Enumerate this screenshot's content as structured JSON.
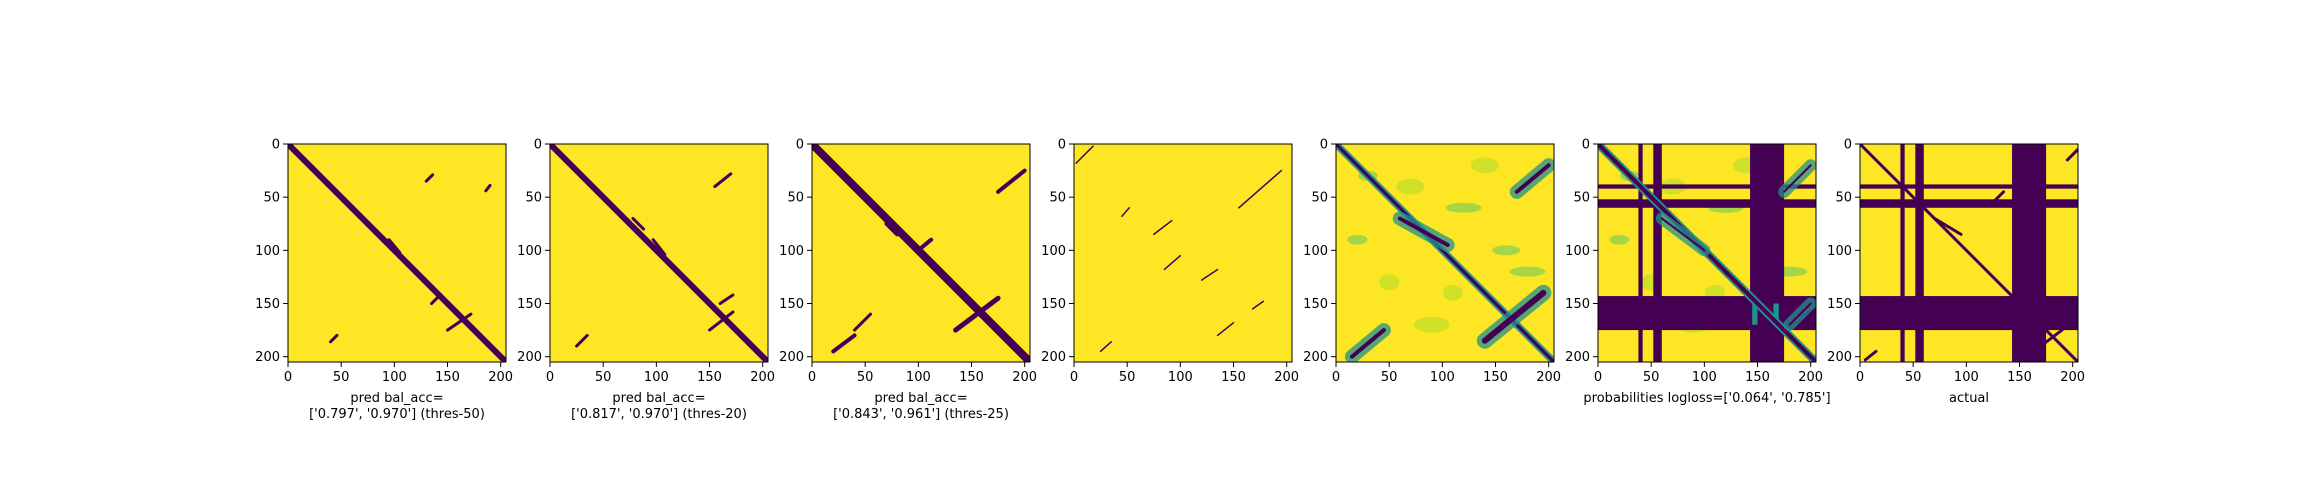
{
  "colors": {
    "background": "#fde725",
    "foreground": "#440154",
    "mid": "#21918c",
    "light": "#5ec962",
    "lighter": "#addc30"
  },
  "chart_data": [
    {
      "type": "heatmap",
      "xlim": [
        0,
        205
      ],
      "ylim": [
        205,
        0
      ],
      "xticks": [
        "0",
        "50",
        "100",
        "150",
        "200"
      ],
      "yticks": [
        "0",
        "50",
        "100",
        "150",
        "200"
      ],
      "xlabel_lines": [
        "pred bal_acc=",
        "['0.797', '0.970'] (thres-50)"
      ]
    },
    {
      "type": "heatmap",
      "xlim": [
        0,
        205
      ],
      "ylim": [
        205,
        0
      ],
      "xticks": [
        "0",
        "50",
        "100",
        "150",
        "200"
      ],
      "yticks": [
        "0",
        "50",
        "100",
        "150",
        "200"
      ],
      "xlabel_lines": [
        "pred bal_acc=",
        "['0.817', '0.970'] (thres-20)"
      ]
    },
    {
      "type": "heatmap",
      "xlim": [
        0,
        205
      ],
      "ylim": [
        205,
        0
      ],
      "xticks": [
        "0",
        "50",
        "100",
        "150",
        "200"
      ],
      "yticks": [
        "0",
        "50",
        "100",
        "150",
        "200"
      ],
      "xlabel_lines": [
        "pred bal_acc=",
        "['0.843', '0.961'] (thres-25)"
      ]
    },
    {
      "type": "heatmap",
      "xlim": [
        0,
        205
      ],
      "ylim": [
        205,
        0
      ],
      "xticks": [
        "0",
        "50",
        "100",
        "150",
        "200"
      ],
      "yticks": [
        "0",
        "50",
        "100",
        "150",
        "200"
      ],
      "xlabel_lines": []
    },
    {
      "type": "heatmap",
      "xlim": [
        0,
        205
      ],
      "ylim": [
        205,
        0
      ],
      "xticks": [
        "0",
        "50",
        "100",
        "150",
        "200"
      ],
      "yticks": [
        "0",
        "50",
        "100",
        "150",
        "200"
      ],
      "xlabel_lines": []
    },
    {
      "type": "heatmap",
      "xlim": [
        0,
        205
      ],
      "ylim": [
        205,
        0
      ],
      "xticks": [
        "0",
        "50",
        "100",
        "150",
        "200"
      ],
      "yticks": [
        "0",
        "50",
        "100",
        "150",
        "200"
      ],
      "xlabel_lines": [
        "probabilities logloss=['0.064', '0.785']"
      ]
    },
    {
      "type": "heatmap",
      "xlim": [
        0,
        205
      ],
      "ylim": [
        205,
        0
      ],
      "xticks": [
        "0",
        "50",
        "100",
        "150",
        "200"
      ],
      "yticks": [
        "0",
        "50",
        "100",
        "150",
        "200"
      ],
      "xlabel_lines": [
        "actual"
      ]
    }
  ]
}
